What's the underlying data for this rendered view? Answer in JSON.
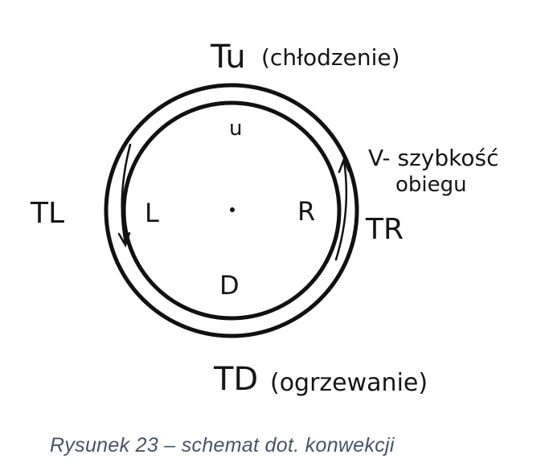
{
  "labels": {
    "top_main": "Tu",
    "top_note": "(chłodzenie)",
    "inner_top": "u",
    "inner_left": "L",
    "inner_right": "R",
    "inner_bottom": "D",
    "outer_left": "TL",
    "outer_right": "TR",
    "speed_line1": "V- szybkość",
    "speed_line2": "obiegu",
    "bottom_main": "TD",
    "bottom_note": "(ogrzewanie)"
  },
  "caption": "Rysunek 23 – schemat dot. konwekcji"
}
